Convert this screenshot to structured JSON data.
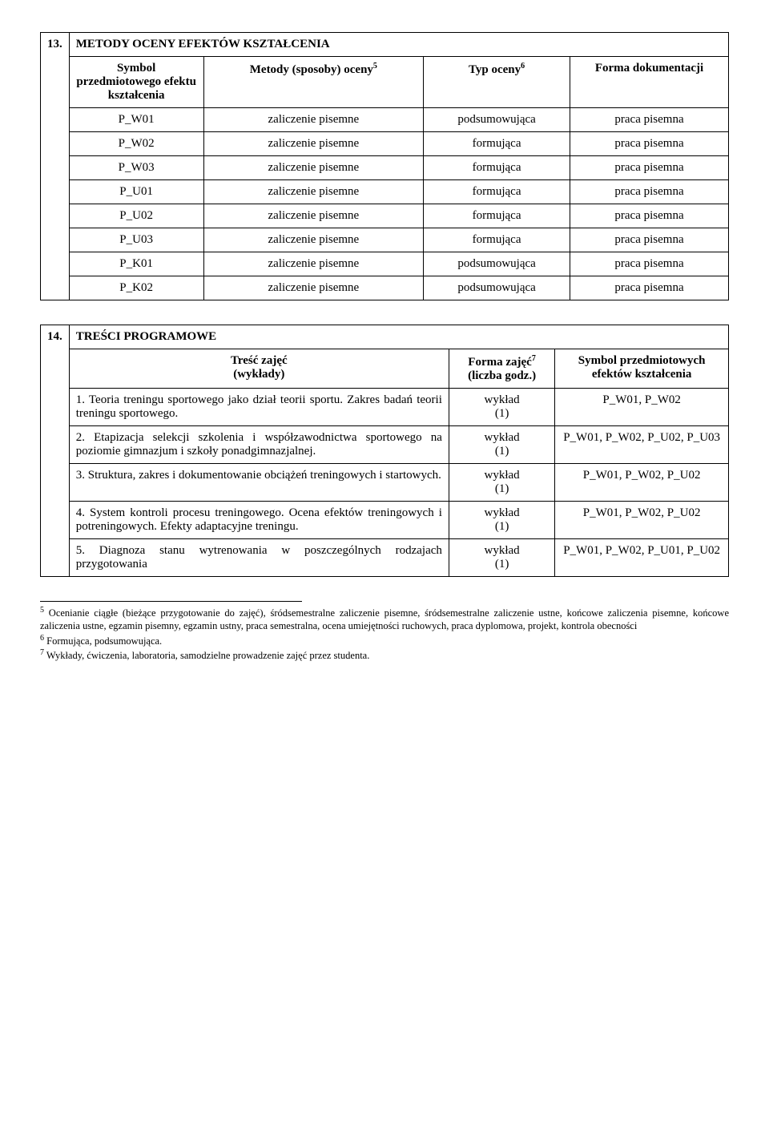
{
  "section13": {
    "num": "13.",
    "title": "METODY OCENY EFEKTÓW KSZTAŁCENIA",
    "headers": {
      "col1": "Symbol przedmiotowego efektu kształcenia",
      "col2_pre": "Metody (sposoby) oceny",
      "col2_sup": "5",
      "col3_pre": "Typ oceny",
      "col3_sup": "6",
      "col4": "Forma dokumentacji"
    },
    "rows": [
      {
        "c1": "P_W01",
        "c2": "zaliczenie pisemne",
        "c3": "podsumowująca",
        "c4": "praca pisemna"
      },
      {
        "c1": "P_W02",
        "c2": "zaliczenie pisemne",
        "c3": "formująca",
        "c4": "praca pisemna"
      },
      {
        "c1": "P_W03",
        "c2": "zaliczenie pisemne",
        "c3": "formująca",
        "c4": "praca pisemna"
      },
      {
        "c1": "P_U01",
        "c2": "zaliczenie pisemne",
        "c3": "formująca",
        "c4": "praca pisemna"
      },
      {
        "c1": "P_U02",
        "c2": "zaliczenie pisemne",
        "c3": "formująca",
        "c4": "praca pisemna"
      },
      {
        "c1": "P_U03",
        "c2": "zaliczenie pisemne",
        "c3": "formująca",
        "c4": "praca pisemna"
      },
      {
        "c1": "P_K01",
        "c2": "zaliczenie pisemne",
        "c3": "podsumowująca",
        "c4": "praca pisemna"
      },
      {
        "c1": "P_K02",
        "c2": "zaliczenie pisemne",
        "c3": "podsumowująca",
        "c4": "praca pisemna"
      }
    ]
  },
  "section14": {
    "num": "14.",
    "title": "TREŚCI PROGRAMOWE",
    "headers": {
      "col1_l1": "Treść zajęć",
      "col1_l2": "(wykłady)",
      "col2_pre": "Forma zajęć",
      "col2_sup": "7",
      "col2_l2": "(liczba godz.)",
      "col3": "Symbol przedmiotowych efektów kształcenia"
    },
    "rows": [
      {
        "desc": "1. Teoria treningu sportowego jako dział teorii sportu. Zakres badań teorii treningu sportowego.",
        "form_l1": "wykład",
        "form_l2": "(1)",
        "sym": "P_W01, P_W02"
      },
      {
        "desc": "2. Etapizacja selekcji szkolenia i współzawodnictwa sportowego na poziomie gimnazjum i szkoły ponadgimnazjalnej.",
        "form_l1": "wykład",
        "form_l2": "(1)",
        "sym": "P_W01, P_W02, P_U02, P_U03"
      },
      {
        "desc": "3. Struktura, zakres i dokumentowanie obciążeń treningowych i startowych.",
        "form_l1": "wykład",
        "form_l2": "(1)",
        "sym": "P_W01, P_W02, P_U02"
      },
      {
        "desc": "4. System kontroli procesu treningowego. Ocena efektów treningowych i potreningowych. Efekty adaptacyjne treningu.",
        "form_l1": "wykład",
        "form_l2": "(1)",
        "sym": "P_W01, P_W02, P_U02"
      },
      {
        "desc": "5. Diagnoza stanu wytrenowania w poszczególnych rodzajach przygotowania",
        "form_l1": "wykład",
        "form_l2": "(1)",
        "sym": "P_W01, P_W02, P_U01, P_U02"
      }
    ]
  },
  "footnotes": {
    "f5_sup": "5",
    "f5": " Ocenianie ciągłe (bieżące przygotowanie do zajęć), śródsemestralne zaliczenie pisemne, śródsemestralne zaliczenie ustne, końcowe zaliczenia pisemne, końcowe zaliczenia ustne, egzamin pisemny, egzamin ustny, praca semestralna, ocena umiejętności ruchowych, praca dyplomowa, projekt, kontrola obecności",
    "f6_sup": "6",
    "f6": " Formująca, podsumowująca.",
    "f7_sup": "7",
    "f7": " Wykłady, ćwiczenia, laboratoria, samodzielne prowadzenie zajęć przez studenta."
  }
}
